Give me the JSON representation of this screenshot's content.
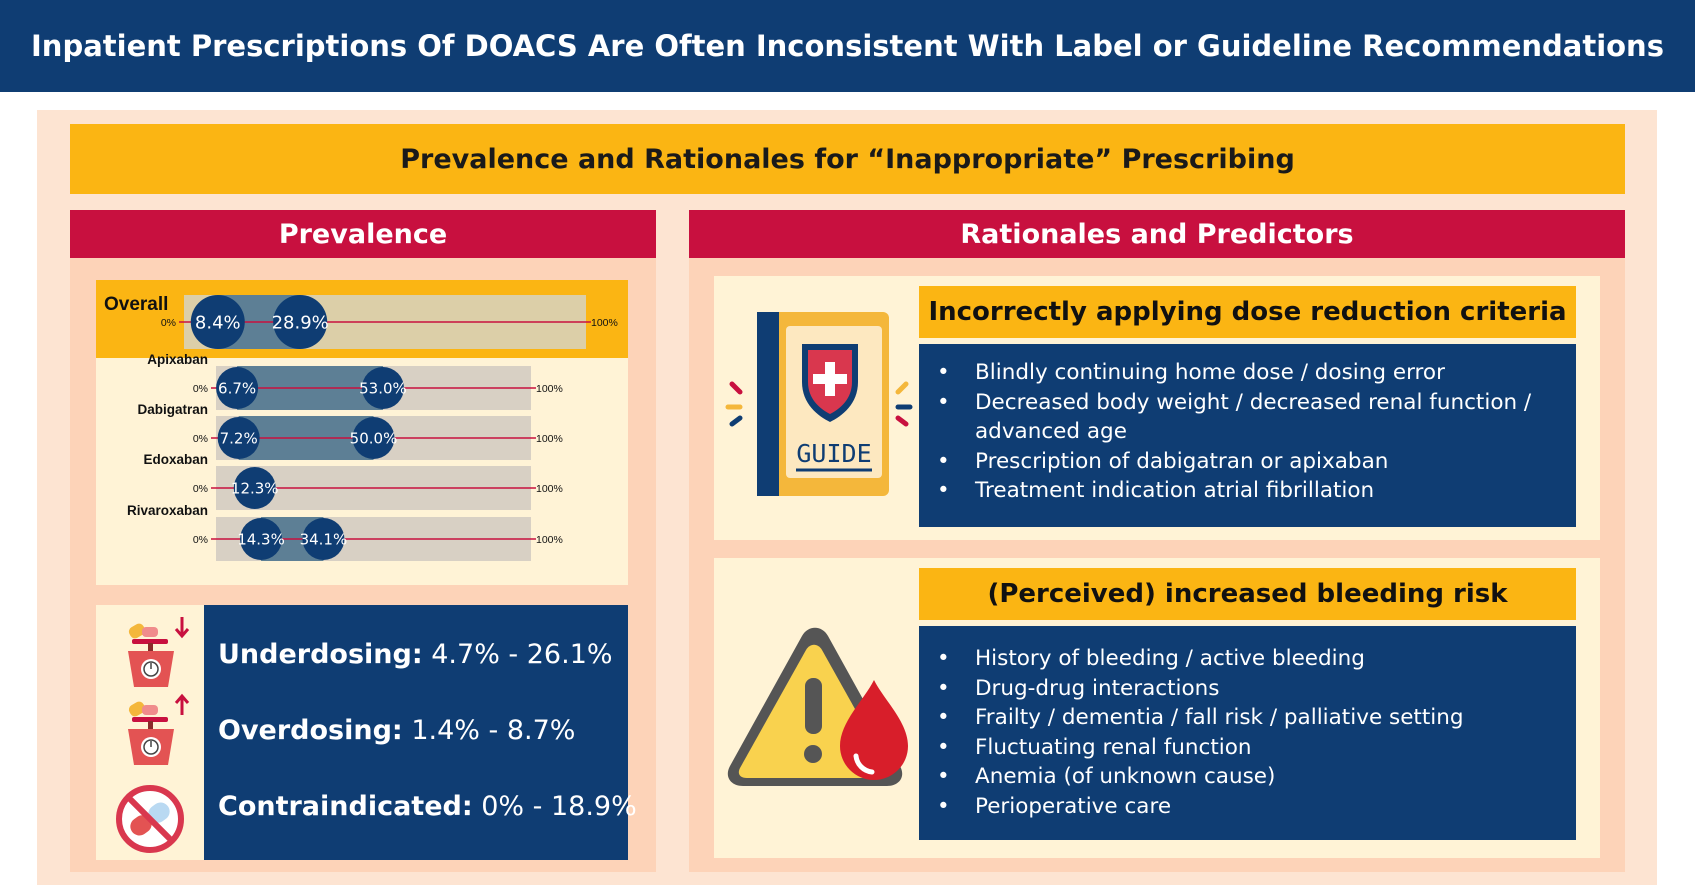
{
  "header": {
    "title": "Inpatient Prescriptions Of DOACS Are Often Inconsistent With Label or Guideline Recommendations",
    "subtitle": "Prevalence and Rationales for “Inappropriate” Prescribing"
  },
  "prevalence": {
    "title": "Prevalence",
    "dosing": [
      {
        "label": "Underdosing:",
        "value": "4.7% - 26.1%",
        "icon": "scale-down-icon"
      },
      {
        "label": "Overdosing:",
        "value": "1.4% - 8.7%",
        "icon": "scale-up-icon"
      },
      {
        "label": "Contraindicated:",
        "value": "0% - 18.9%",
        "icon": "no-pill-icon"
      }
    ]
  },
  "chart_data": {
    "type": "range",
    "axis_min_label": "0%",
    "axis_max_label": "100%",
    "xlim": [
      0,
      100
    ],
    "series": [
      {
        "name": "Overall",
        "low": 8.4,
        "high": 28.9,
        "low_label": "8.4%",
        "high_label": "28.9%"
      },
      {
        "name": "Apixaban",
        "low": 6.7,
        "high": 53.0,
        "low_label": "6.7%",
        "high_label": "53.0%"
      },
      {
        "name": "Dabigatran",
        "low": 7.2,
        "high": 50.0,
        "low_label": "7.2%",
        "high_label": "50.0%"
      },
      {
        "name": "Edoxaban",
        "low": 12.3,
        "high": 12.3,
        "low_label": "12.3%",
        "high_label": ""
      },
      {
        "name": "Rivaroxaban",
        "low": 14.3,
        "high": 34.1,
        "low_label": "14.3%",
        "high_label": "34.1%"
      }
    ]
  },
  "rationales": {
    "title": "Rationales and Predictors",
    "cards": [
      {
        "title": "Incorrectly applying dose reduction criteria",
        "icon": "guide-book-icon",
        "icon_text": "GUIDE",
        "items": [
          "Blindly continuing home dose / dosing error",
          "Decreased body weight / decreased renal function / advanced age",
          "Prescription of dabigatran or apixaban",
          "Treatment indication atrial fibrillation"
        ]
      },
      {
        "title": "(Perceived) increased bleeding risk",
        "icon": "warning-blood-drop-icon",
        "items": [
          "History of bleeding / active bleeding",
          "Drug-drug interactions",
          "Frailty / dementia / fall risk / palliative setting",
          "Fluctuating renal function",
          "Anemia (of unknown cause)",
          "Perioperative care"
        ]
      }
    ]
  },
  "colors": {
    "navy": "#0f3d73",
    "amber": "#fbb513",
    "crimson": "#c8103f",
    "peach": "#fdd3b8",
    "cream": "#fff3d6",
    "range_bar": "#5d7f95",
    "track": "#d8d0c4"
  }
}
